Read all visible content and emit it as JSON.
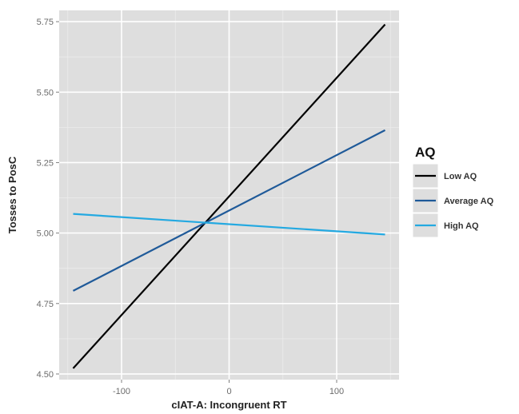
{
  "chart_data": {
    "type": "line",
    "title": "",
    "xlabel": "cIAT-A: Incongruent RT",
    "ylabel": "Tosses to PosC",
    "xlim": [
      -158,
      158
    ],
    "ylim": [
      4.48,
      5.79
    ],
    "x_ticks": [
      -100,
      0,
      100
    ],
    "x_tick_labels": [
      "-100",
      "0",
      "100"
    ],
    "y_ticks": [
      4.5,
      4.75,
      5.0,
      5.25,
      5.5,
      5.75
    ],
    "y_tick_labels": [
      "4.50",
      "4.75",
      "5.00",
      "5.25",
      "5.50",
      "5.75"
    ],
    "grid": true,
    "legend": {
      "title": "AQ",
      "position": "right"
    },
    "series": [
      {
        "name": "Low AQ",
        "color": "#000000",
        "x": [
          -145,
          145
        ],
        "y": [
          4.52,
          5.74
        ]
      },
      {
        "name": "Average AQ",
        "color": "#1f5a99",
        "x": [
          -145,
          145
        ],
        "y": [
          4.795,
          5.365
        ]
      },
      {
        "name": "High AQ",
        "color": "#24a9e1",
        "x": [
          -145,
          145
        ],
        "y": [
          5.068,
          4.995
        ]
      }
    ]
  }
}
